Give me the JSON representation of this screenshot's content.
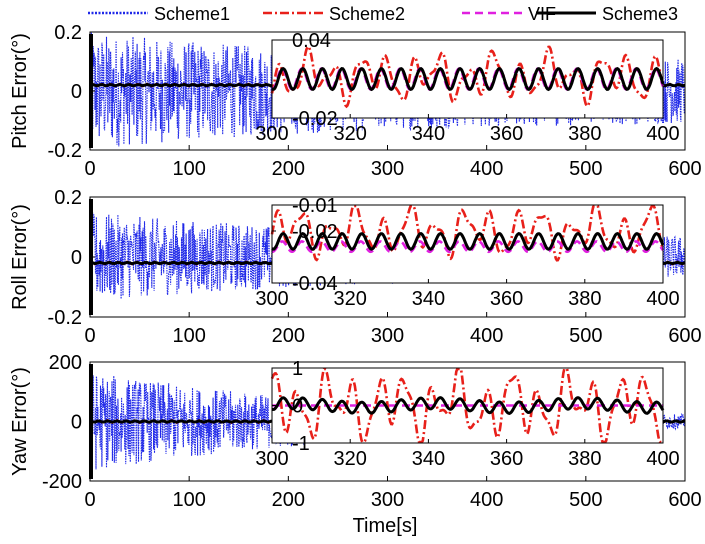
{
  "chart_data": {
    "type": "line",
    "xlabel": "Time[s]",
    "legend": {
      "placement": "top",
      "entries": [
        {
          "name": "Scheme1",
          "color": "#1f28e8",
          "style": "dotted"
        },
        {
          "name": "Scheme2",
          "color": "#e8201a",
          "style": "dashdot"
        },
        {
          "name": "VIF",
          "color": "#e020e0",
          "style": "dashed"
        },
        {
          "name": "Scheme3",
          "color": "#000000",
          "style": "solid"
        }
      ]
    },
    "panels": [
      {
        "ylabel": "Pitch Error(°)",
        "xlim": [
          0,
          600
        ],
        "ylim": [
          -0.2,
          0.2
        ],
        "xticks": [
          "0",
          "100",
          "200",
          "300",
          "400",
          "500",
          "600"
        ],
        "yticks": [
          "-0.2",
          "0",
          "0.2"
        ],
        "ytick_values": [
          -0.2,
          0,
          0.2
        ],
        "series_summary": {
          "Scheme1": {
            "amplitude_start": 0.2,
            "amplitude_end": 0.1
          },
          "Scheme2": {
            "mean": 0.02
          },
          "VIF": {
            "mean": 0.02
          },
          "Scheme3": {
            "mean": 0.02
          }
        },
        "inset": {
          "xlim": [
            300,
            400
          ],
          "ylim": [
            -0.02,
            0.04
          ],
          "xticks": [
            "300",
            "320",
            "340",
            "360",
            "380",
            "400"
          ],
          "yticks": [
            "-0.02",
            "0.04"
          ],
          "ytick_values": [
            -0.02,
            0.04
          ],
          "series_summary": {
            "Scheme2": {
              "mean": 0.012,
              "amplitude": 0.02
            },
            "VIF": {
              "mean": 0.01,
              "amplitude": 0.008
            },
            "Scheme3": {
              "mean": 0.01,
              "amplitude": 0.008
            }
          }
        }
      },
      {
        "ylabel": "Roll Error(°)",
        "xlim": [
          0,
          600
        ],
        "ylim": [
          -0.2,
          0.2
        ],
        "xticks": [
          "0",
          "100",
          "200",
          "300",
          "400",
          "500",
          "600"
        ],
        "yticks": [
          "-0.2",
          "0",
          "0.2"
        ],
        "ytick_values": [
          -0.2,
          0,
          0.2
        ],
        "series_summary": {
          "Scheme1": {
            "amplitude_start": 0.15,
            "amplitude_end": 0.06
          },
          "Scheme2": {
            "mean": -0.02
          },
          "VIF": {
            "mean": -0.02
          },
          "Scheme3": {
            "mean": -0.02
          }
        },
        "inset": {
          "xlim": [
            300,
            400
          ],
          "ylim": [
            -0.04,
            -0.01
          ],
          "xticks": [
            "300",
            "320",
            "340",
            "360",
            "380",
            "400"
          ],
          "yticks": [
            "-0.01",
            "-0.02",
            "-0.04"
          ],
          "ytick_values": [
            -0.01,
            -0.02,
            -0.04
          ],
          "series_summary": {
            "Scheme2": {
              "mean": -0.02,
              "amplitude": 0.01
            },
            "VIF": {
              "mean": -0.026,
              "amplitude": 0.002
            },
            "Scheme3": {
              "mean": -0.024,
              "amplitude": 0.003
            }
          }
        }
      },
      {
        "ylabel": "Yaw Error(°)",
        "xlim": [
          0,
          600
        ],
        "ylim": [
          -200,
          200
        ],
        "xticks": [
          "0",
          "100",
          "200",
          "300",
          "400",
          "500",
          "600"
        ],
        "yticks": [
          "-200",
          "0",
          "200"
        ],
        "ytick_values": [
          -200,
          0,
          200
        ],
        "series_summary": {
          "Scheme1": {
            "amplitude_start": 170,
            "amplitude_end": 5
          },
          "Scheme2": {
            "mean": 0
          },
          "VIF": {
            "mean": 0
          },
          "Scheme3": {
            "mean": 0
          }
        },
        "inset": {
          "xlim": [
            300,
            400
          ],
          "ylim": [
            -1,
            1
          ],
          "xticks": [
            "300",
            "320",
            "340",
            "360",
            "380",
            "400"
          ],
          "yticks": [
            "1",
            "0",
            "-1"
          ],
          "ytick_values": [
            1,
            0,
            -1
          ],
          "series_summary": {
            "Scheme2": {
              "mean": 0,
              "amplitude": 1
            },
            "VIF": {
              "mean": 0,
              "amplitude": 0
            },
            "Scheme3": {
              "mean": 0,
              "amplitude": 0.15
            }
          }
        }
      }
    ]
  }
}
